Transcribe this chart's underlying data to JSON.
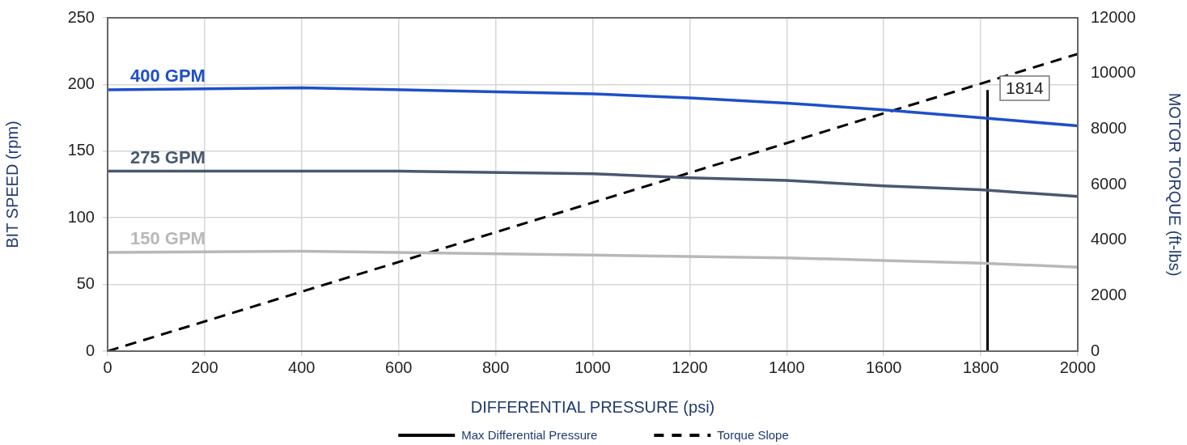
{
  "chart_data": {
    "type": "line",
    "xlabel": "DIFFERENTIAL PRESSURE (psi)",
    "ylabel": "BIT SPEED (rpm)",
    "y2label": "MOTOR TORQUE (ft-lbs)",
    "xlim": [
      0,
      2000
    ],
    "xticks": [
      0,
      200,
      400,
      600,
      800,
      1000,
      1200,
      1400,
      1600,
      1800,
      2000
    ],
    "ylim": [
      0,
      250
    ],
    "yticks": [
      0,
      50,
      100,
      150,
      200,
      250
    ],
    "y2lim": [
      0,
      12000
    ],
    "y2ticks": [
      0,
      2000,
      4000,
      6000,
      8000,
      10000,
      12000
    ],
    "grid": true,
    "legend": "bottom",
    "marker": "none",
    "annotations": [
      "1814"
    ],
    "series": [
      {
        "name": "400 GPM",
        "color": "#1f4fc8",
        "x": [
          0,
          400,
          1000,
          1200,
          1400,
          1600,
          1800,
          2000
        ],
        "values": [
          196,
          197.5,
          193,
          190,
          186,
          181,
          175,
          169
        ]
      },
      {
        "name": "275 GPM",
        "color": "#4a5870",
        "x": [
          0,
          600,
          1000,
          1200,
          1400,
          1600,
          1800,
          2000
        ],
        "values": [
          135,
          135,
          133,
          130,
          128,
          124,
          121,
          116
        ]
      },
      {
        "name": "150 GPM",
        "color": "#b8b8b8",
        "x": [
          0,
          400,
          1000,
          1400,
          1600,
          1800,
          2000
        ],
        "values": [
          74,
          75,
          72,
          70,
          68,
          66,
          63
        ]
      },
      {
        "name": "Max Differential Pressure",
        "color": "#000000",
        "axis": "y2",
        "line_style": "solid",
        "x": [
          1814,
          1814
        ],
        "values": [
          0,
          9400
        ]
      },
      {
        "name": "Torque Slope",
        "color": "#000000",
        "axis": "y2",
        "line_style": "dashed",
        "x": [
          0,
          2000
        ],
        "values": [
          0,
          10700
        ]
      }
    ]
  }
}
